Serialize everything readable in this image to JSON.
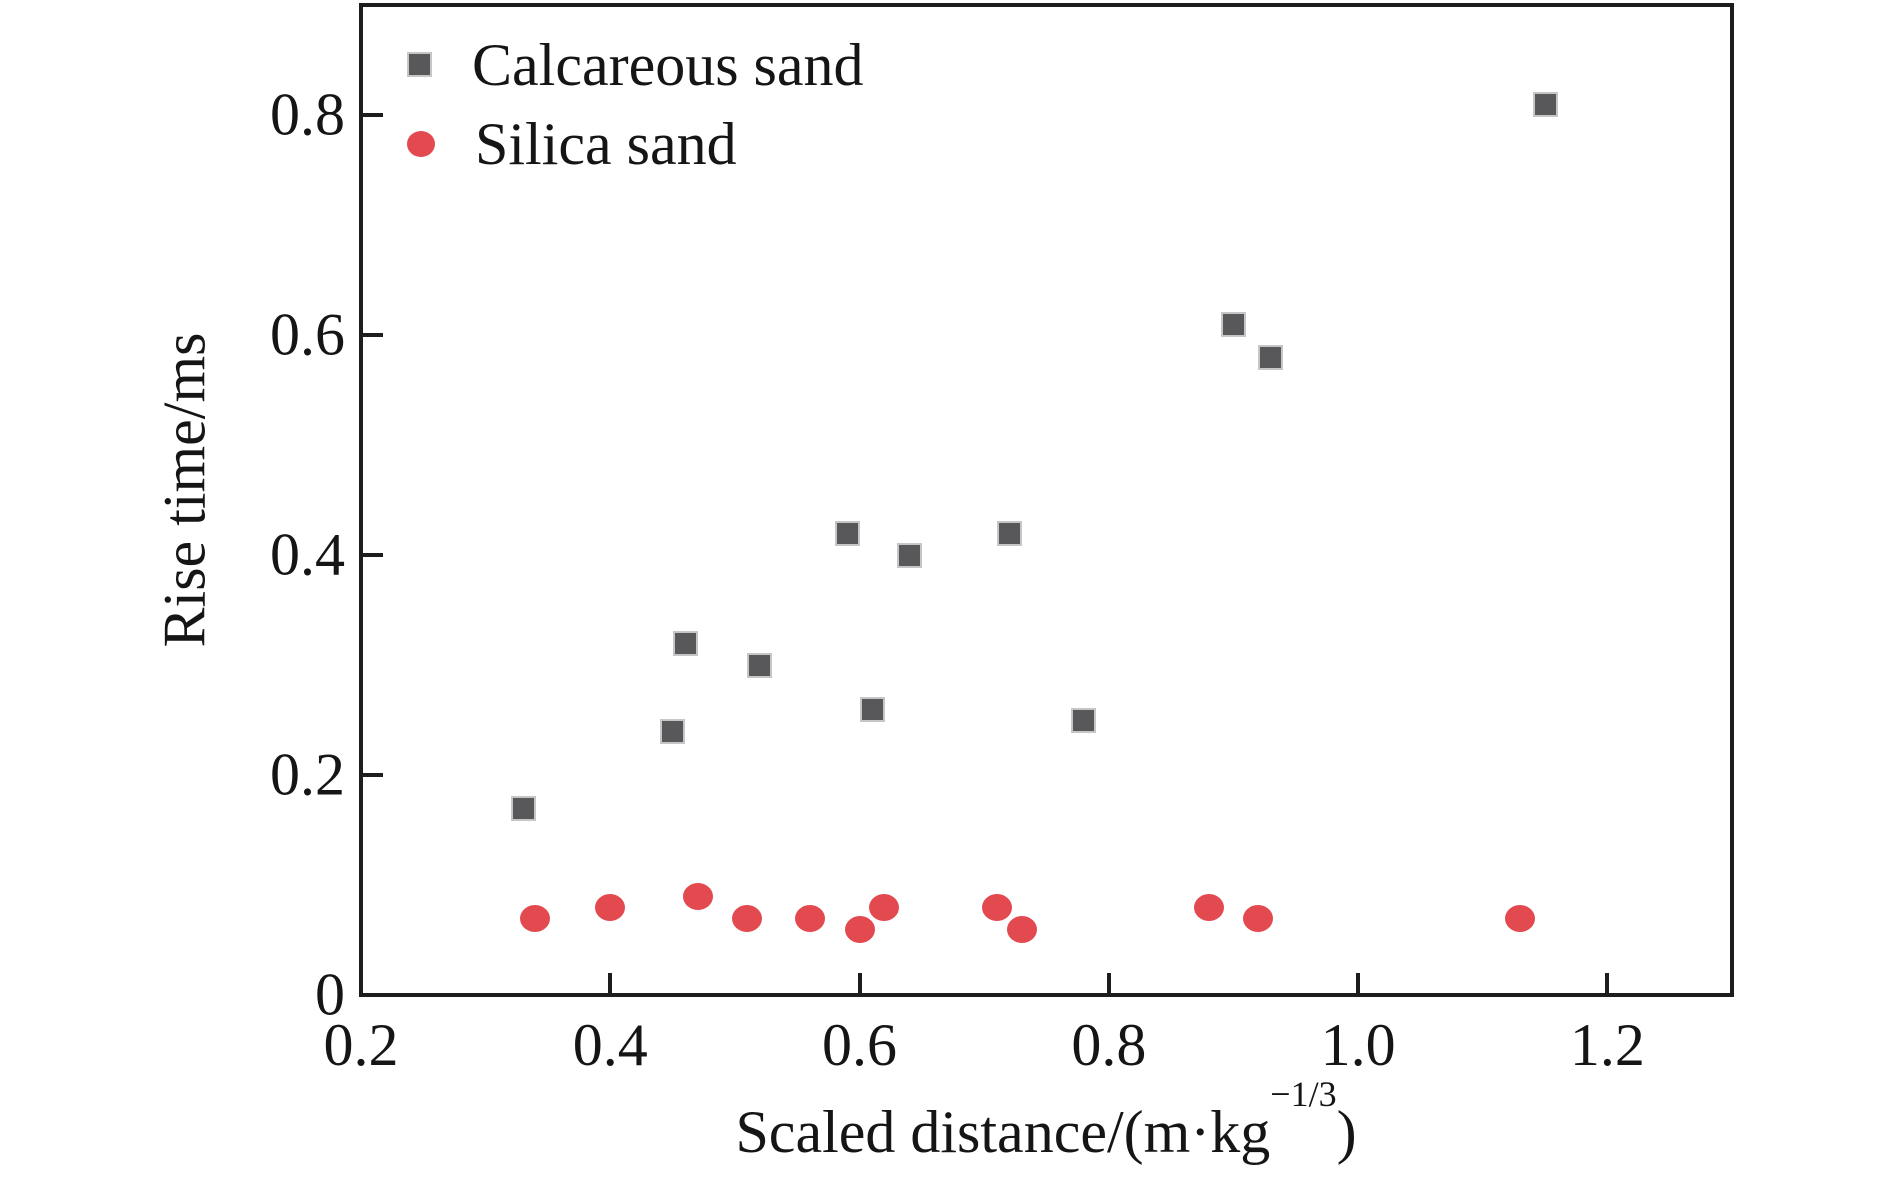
{
  "figure": {
    "background": "#ffffff",
    "axis_color": "#1d1d1f",
    "text_color": "#151515"
  },
  "chart_data": {
    "type": "scatter",
    "title": "",
    "xlabel": "Scaled distance/(m·kg−1/3)",
    "xlabel_parts": {
      "prefix": "Scaled distance/(m·kg",
      "superscript": "−1/3",
      "suffix": ")"
    },
    "ylabel": "Rise time/ms",
    "xlim": [
      0.2,
      1.3
    ],
    "ylim": [
      0,
      0.9
    ],
    "grid": false,
    "x_tick_marks": [
      0.4,
      0.6,
      0.8,
      1.0,
      1.2
    ],
    "x_tick_labels": [
      {
        "value": 0.2,
        "label": "0.2"
      },
      {
        "value": 0.4,
        "label": "0.4"
      },
      {
        "value": 0.6,
        "label": "0.6"
      },
      {
        "value": 0.8,
        "label": "0.8"
      },
      {
        "value": 1.0,
        "label": "1.0"
      },
      {
        "value": 1.2,
        "label": "1.2"
      }
    ],
    "y_tick_marks": [
      0.2,
      0.4,
      0.6,
      0.8
    ],
    "y_tick_labels": [
      {
        "value": 0,
        "label": "0"
      },
      {
        "value": 0.2,
        "label": "0.2"
      },
      {
        "value": 0.4,
        "label": "0.4"
      },
      {
        "value": 0.6,
        "label": "0.6"
      },
      {
        "value": 0.8,
        "label": "0.8"
      }
    ],
    "legend": {
      "position": "upper-left",
      "items": [
        {
          "label": "Calcareous sand",
          "marker": "square",
          "color": "#58585a"
        },
        {
          "label": "Silica sand",
          "marker": "circle",
          "color": "#e24a50"
        }
      ]
    },
    "series": [
      {
        "name": "Calcareous sand",
        "marker": "square",
        "color": "#58585a",
        "marker_edge_color": "#c6c6c6",
        "points": [
          [
            0.33,
            0.17
          ],
          [
            0.45,
            0.24
          ],
          [
            0.46,
            0.32
          ],
          [
            0.52,
            0.3
          ],
          [
            0.59,
            0.42
          ],
          [
            0.61,
            0.26
          ],
          [
            0.64,
            0.4
          ],
          [
            0.72,
            0.42
          ],
          [
            0.78,
            0.25
          ],
          [
            0.9,
            0.61
          ],
          [
            0.93,
            0.58
          ],
          [
            1.15,
            0.81
          ]
        ]
      },
      {
        "name": "Silica sand",
        "marker": "circle",
        "color": "#e24a50",
        "marker_edge_color": "#e24a50",
        "points": [
          [
            0.34,
            0.07
          ],
          [
            0.4,
            0.08
          ],
          [
            0.47,
            0.09
          ],
          [
            0.51,
            0.07
          ],
          [
            0.56,
            0.07
          ],
          [
            0.6,
            0.06
          ],
          [
            0.62,
            0.08
          ],
          [
            0.71,
            0.08
          ],
          [
            0.73,
            0.06
          ],
          [
            0.88,
            0.08
          ],
          [
            0.92,
            0.07
          ],
          [
            1.13,
            0.07
          ]
        ]
      }
    ]
  }
}
